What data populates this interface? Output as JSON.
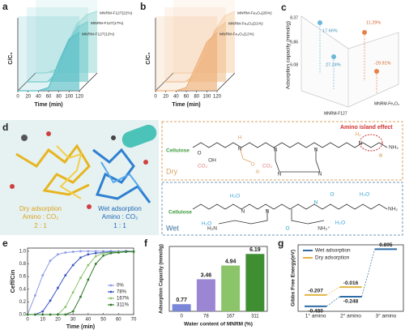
{
  "chart_data": [
    {
      "type": "waterfall",
      "panel": "a",
      "y_label": "C/C₀",
      "x_label": "Time (min)",
      "x": [
        0,
        20,
        40,
        60,
        80,
        100,
        120
      ],
      "xlim": [
        0,
        120
      ],
      "xticks": [
        0,
        20,
        40,
        60,
        80,
        100,
        120
      ],
      "ylim": [
        0,
        1
      ],
      "series": [
        {
          "name": "MNRM-F127(22%)",
          "color": "#a8e0dc",
          "values": [
            0,
            0,
            0.05,
            0.4,
            0.75,
            0.9,
            0.95
          ]
        },
        {
          "name": "MNRM-F127(17%)",
          "color": "#7ccfcf",
          "values": [
            0,
            0,
            0,
            0.15,
            0.6,
            0.85,
            0.93
          ]
        },
        {
          "name": "MNRM-F127(12%)",
          "color": "#5bbfc8",
          "values": [
            0,
            0,
            0,
            0.05,
            0.45,
            0.8,
            0.9
          ]
        }
      ]
    },
    {
      "type": "waterfall",
      "panel": "b",
      "y_label": "C/C₀",
      "x_label": "Time (min)",
      "x": [
        0,
        20,
        40,
        60,
        80,
        100,
        120
      ],
      "xlim": [
        0,
        120
      ],
      "xticks": [
        0,
        20,
        40,
        60,
        80,
        100,
        120
      ],
      "ylim": [
        0,
        1
      ],
      "series": [
        {
          "name": "MNRM-Fe₃O₄(26%)",
          "color": "#f7d9b8",
          "values": [
            0,
            0,
            0,
            0.2,
            0.65,
            0.88,
            0.95
          ]
        },
        {
          "name": "MNRM-Fe₃O₄(21%)",
          "color": "#f2c49a",
          "values": [
            0,
            0,
            0,
            0.1,
            0.5,
            0.8,
            0.92
          ]
        },
        {
          "name": "MNRM-Fe₃O₄(12%)",
          "color": "#eeb07a",
          "values": [
            0,
            0,
            0,
            0.05,
            0.4,
            0.75,
            0.9
          ]
        }
      ]
    },
    {
      "type": "line",
      "panel": "e",
      "y_label": "Ceff/Cin",
      "x_label": "Time (min)",
      "x": [
        0,
        5,
        10,
        15,
        20,
        25,
        30,
        35,
        40,
        45,
        50,
        55,
        60,
        65,
        70
      ],
      "xlim": [
        0,
        70
      ],
      "xticks": [
        0,
        10,
        20,
        30,
        40,
        50,
        60,
        70
      ],
      "ylim": [
        0,
        1.05
      ],
      "yticks": [
        {
          "value": 0,
          "label": "0.0"
        },
        0.2,
        0.4,
        0.6,
        0.8,
        {
          "value": 1,
          "label": "1.0"
        }
      ],
      "legend": "right",
      "series": [
        {
          "name": "0%",
          "color": "#8c9ce6",
          "values": [
            0,
            0.3,
            0.62,
            0.85,
            0.95,
            0.98,
            0.99,
            1,
            1,
            1,
            1,
            1,
            1,
            1,
            1
          ]
        },
        {
          "name": "78%",
          "color": "#3a55c4",
          "values": [
            0,
            0,
            0.05,
            0.22,
            0.42,
            0.62,
            0.78,
            0.9,
            0.95,
            0.97,
            0.98,
            0.99,
            0.99,
            1,
            1
          ]
        },
        {
          "name": "167%",
          "color": "#8cc46a",
          "values": [
            0,
            0,
            0,
            0,
            0,
            0.12,
            0.35,
            0.58,
            0.78,
            0.92,
            0.97,
            0.98,
            0.99,
            0.99,
            1
          ]
        },
        {
          "name": "311%",
          "color": "#2f7a2a",
          "values": [
            0,
            0,
            0,
            0,
            0,
            0,
            0.05,
            0.28,
            0.55,
            0.8,
            0.93,
            0.97,
            0.98,
            0.99,
            0.99
          ]
        }
      ]
    },
    {
      "type": "bar",
      "panel": "f",
      "y_label": "Adsorption Capacity (mmol/g)",
      "x_label": "Water content of MNRM (%)",
      "categories": [
        "0",
        "78",
        "167",
        "311"
      ],
      "values": [
        0.77,
        3.46,
        4.94,
        6.19
      ],
      "colors": [
        "#7a86d8",
        "#9b86d4",
        "#8cc46a",
        "#3f8f32"
      ],
      "ylim": [
        0,
        7
      ]
    },
    {
      "type": "energy",
      "panel": "g",
      "y_label": "Gibbs Free Energy(eV)",
      "categories": [
        "1° amino",
        "2° amino",
        "3° amino"
      ],
      "ylim": [
        -0.6,
        1.0
      ],
      "legend": "upper left",
      "series": [
        {
          "name": "Wet adsorption",
          "color": "#2e6da4",
          "values": [
            -0.48,
            -0.248,
            0.895
          ],
          "value_labels": [
            "-0.480",
            "-0.248",
            "0.895"
          ]
        },
        {
          "name": "Dry adsorption",
          "color": "#e2b443",
          "values": [
            -0.207,
            -0.016,
            null
          ]
        }
      ]
    }
  ],
  "panel_c": {
    "panel": "c",
    "y_label": "Adsorption capacity (mmol/g)",
    "ticks": [
      "8.37",
      "6.86",
      "6.08"
    ],
    "annotations": [
      "17.66%",
      "27.24%",
      "11.29%",
      "-29.91%"
    ],
    "x_label": "MNRM-F127",
    "z_label": "MNRM-Fe₃O₄"
  },
  "panel_d": {
    "panel": "d",
    "dry_caption": [
      "Dry adsorption",
      "Amino : CO₂",
      "2 : 1"
    ],
    "wet_caption": [
      "Wet adsorption",
      "Amino : CO₂",
      "1 : 1"
    ],
    "dry": {
      "label": "Dry",
      "effect": "Amino island effect",
      "cellulose": "Cellulose",
      "atoms": [
        "O",
        "OH",
        "H",
        "N",
        "N",
        "N",
        "N",
        "N",
        "H₂",
        "N",
        "NH₂",
        "CO₂",
        "CO₂",
        "O",
        "⊖",
        "⊕"
      ]
    },
    "wet": {
      "label": "Wet",
      "cellulose": "Cellulose",
      "atoms": [
        "H₂O",
        "H₂O",
        "H₂O",
        "H₂O",
        "N",
        "N",
        "N",
        "H₂N",
        "NH₃⁺",
        "NH₂",
        "O",
        "O"
      ]
    }
  }
}
